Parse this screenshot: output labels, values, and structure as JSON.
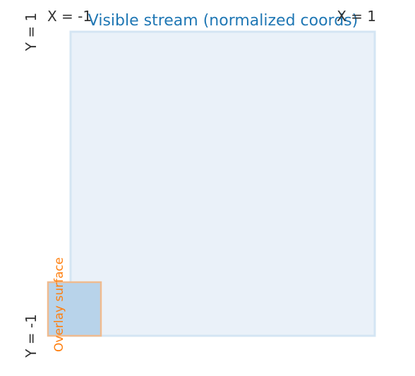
{
  "title": "Visible stream (normalized coords)",
  "axis_labels": {
    "x_min": "X = -1",
    "x_max": "X = 1",
    "y_max": "Y = 1",
    "y_min": "Y = -1"
  },
  "overlay": {
    "label": "Overlay surface"
  },
  "colors": {
    "title": "#1f77b4",
    "axis_text": "#333333",
    "overlay_text": "#ff7f0e",
    "stream_fill": "#eaf1f9",
    "stream_stroke": "#d4e5f3",
    "overlay_fill": "#b8d3ea",
    "overlay_stroke": "#f0bb8f"
  }
}
